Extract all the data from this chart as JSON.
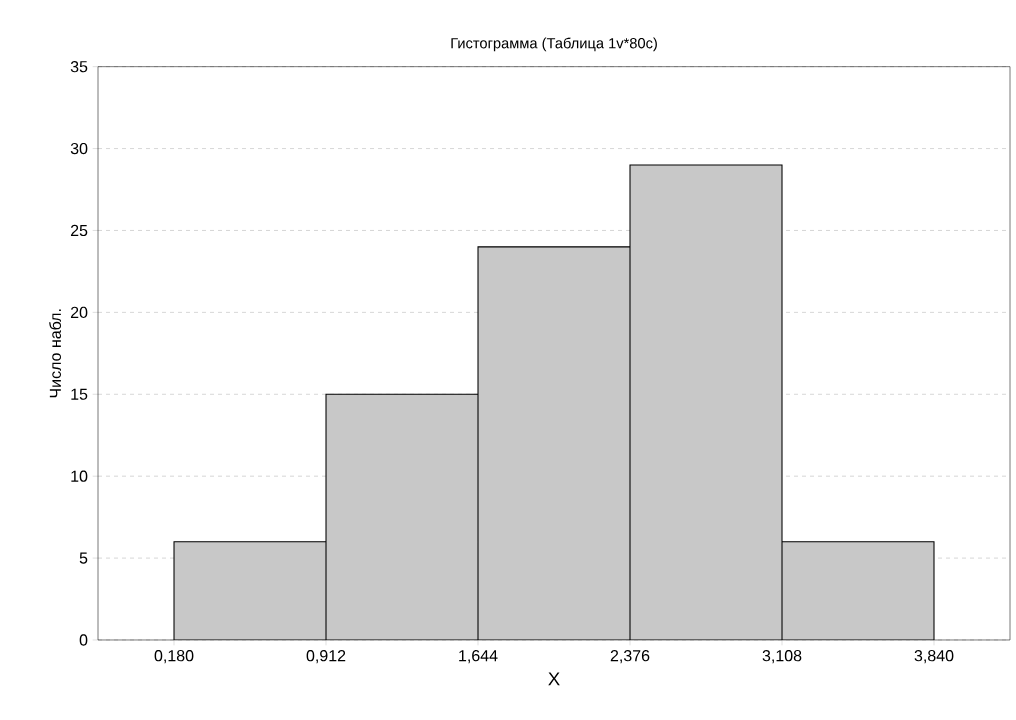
{
  "chart_data": {
    "type": "histogram",
    "title": "Гистограмма (Таблица 1v*80c)",
    "xlabel": "X",
    "ylabel": "Число набл.",
    "bins": [
      0.18,
      0.912,
      1.644,
      2.376,
      3.108,
      3.84
    ],
    "values": [
      6,
      15,
      24,
      29,
      6
    ],
    "color": "#c8c8c8",
    "xlim": [
      -0.186,
      4.206
    ],
    "ylim": [
      0,
      35
    ],
    "xticks": [
      {
        "value": 0.18,
        "label": "0,180"
      },
      {
        "value": 0.912,
        "label": "0,912"
      },
      {
        "value": 1.644,
        "label": "1,644"
      },
      {
        "value": 2.376,
        "label": "2,376"
      },
      {
        "value": 3.108,
        "label": "3,108"
      },
      {
        "value": 3.84,
        "label": "3,840"
      }
    ],
    "yticks": [
      0,
      5,
      10,
      15,
      20,
      25,
      30,
      35
    ],
    "grid": "y"
  }
}
